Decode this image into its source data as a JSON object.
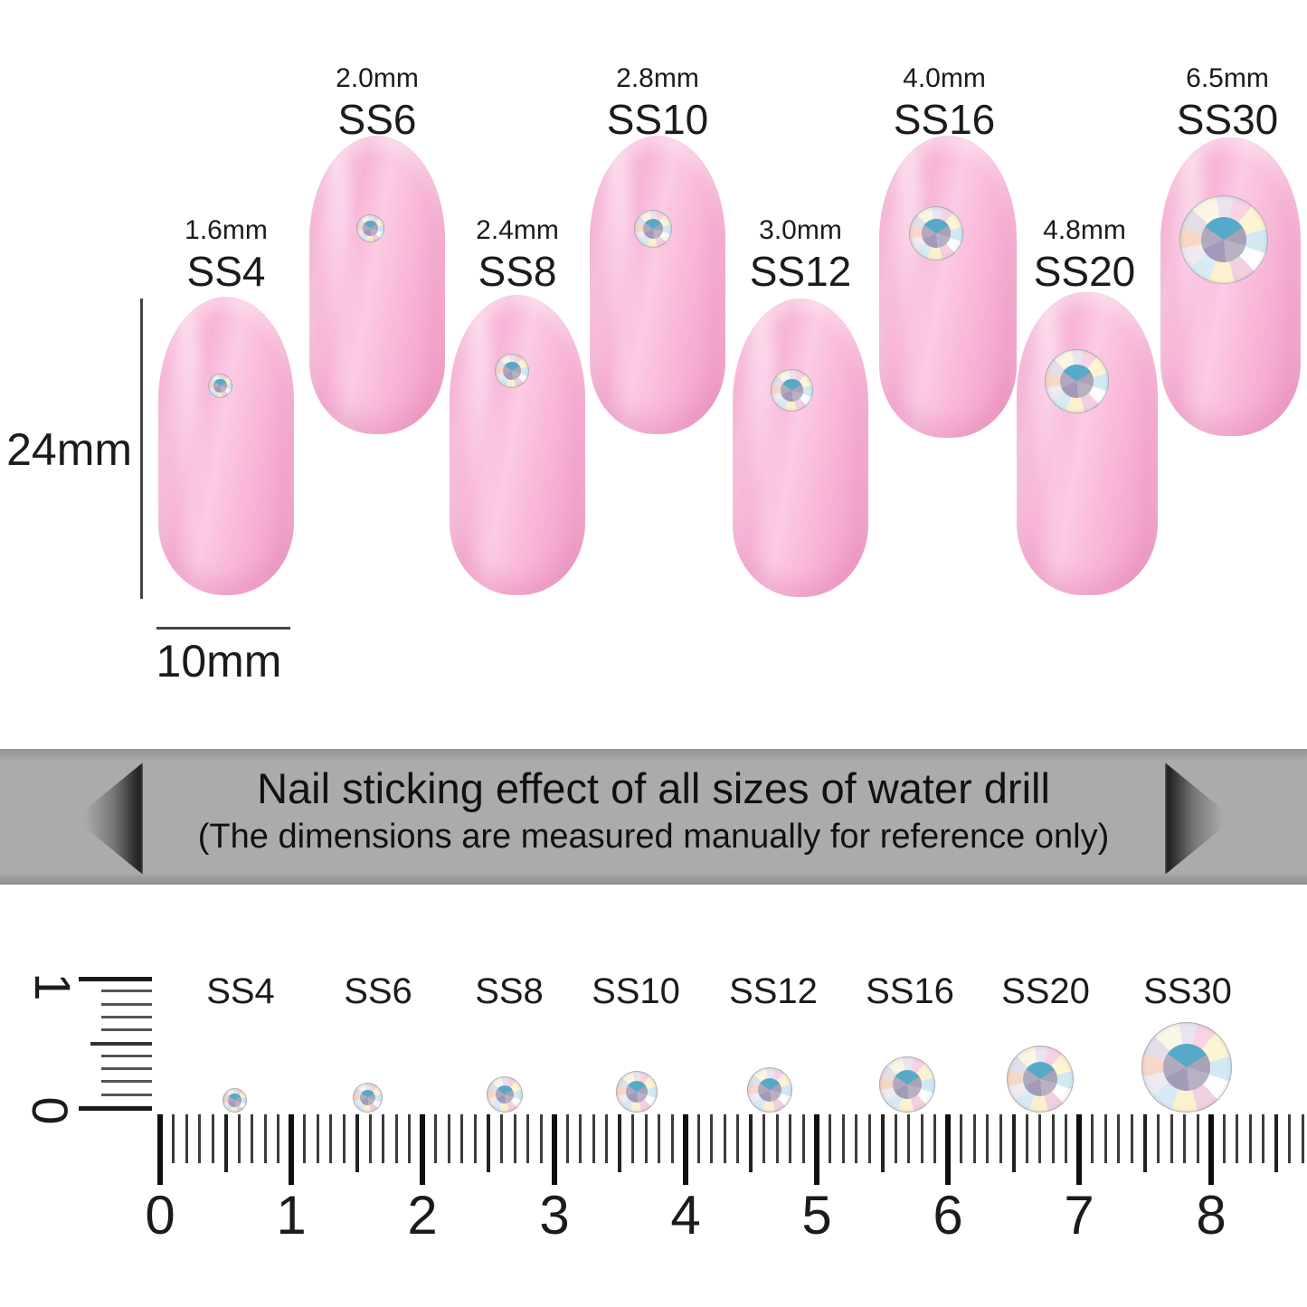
{
  "nails": [
    {
      "size_mm": "1.6mm",
      "ss": "SS4"
    },
    {
      "size_mm": "2.0mm",
      "ss": "SS6"
    },
    {
      "size_mm": "2.4mm",
      "ss": "SS8"
    },
    {
      "size_mm": "2.8mm",
      "ss": "SS10"
    },
    {
      "size_mm": "3.0mm",
      "ss": "SS12"
    },
    {
      "size_mm": "4.0mm",
      "ss": "SS16"
    },
    {
      "size_mm": "4.8mm",
      "ss": "SS20"
    },
    {
      "size_mm": "6.5mm",
      "ss": "SS30"
    }
  ],
  "dimension_labels": {
    "nail_height": "24mm",
    "nail_width": "10mm"
  },
  "banner": {
    "line1": "Nail sticking effect of all sizes of water drill",
    "line2": "(The dimensions are measured manually for reference only)"
  },
  "ruler": {
    "vertical_top": "1",
    "vertical_bottom": "0",
    "numbers": [
      "0",
      "1",
      "2",
      "3",
      "4",
      "5",
      "6",
      "7",
      "8"
    ],
    "gem_labels": [
      "SS4",
      "SS6",
      "SS8",
      "SS10",
      "SS12",
      "SS16",
      "SS20",
      "SS30"
    ]
  },
  "colors": {
    "nail_pink": "#f9bada",
    "banner_gray": "#ababab",
    "text_black": "#1b1b1b",
    "gem_center_teal": "#57a9c8"
  }
}
